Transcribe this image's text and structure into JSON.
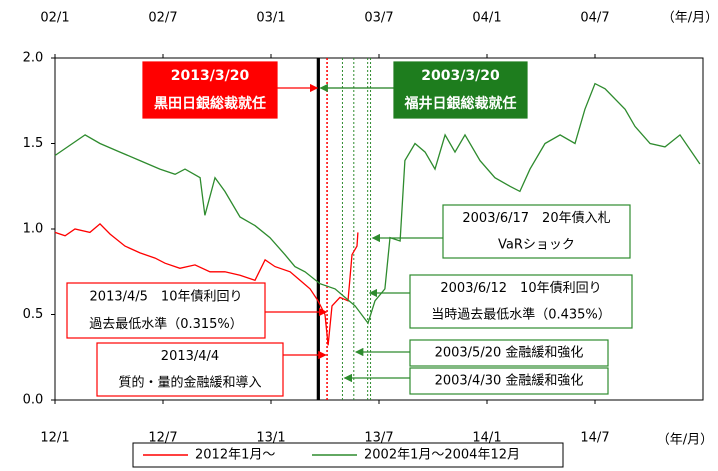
{
  "chart_data": {
    "type": "line",
    "xlim": [
      0,
      36
    ],
    "ylim": [
      0,
      2
    ],
    "xticks": [
      {
        "value": 0,
        "label": "12/1"
      },
      {
        "value": 6,
        "label": "12/7"
      },
      {
        "value": 12,
        "label": "13/1"
      },
      {
        "value": 18,
        "label": "13/7"
      },
      {
        "value": 24,
        "label": "14/1"
      },
      {
        "value": 30,
        "label": "14/7"
      }
    ],
    "x2ticks": [
      {
        "value": 0,
        "label": "02/1"
      },
      {
        "value": 6,
        "label": "02/7"
      },
      {
        "value": 12,
        "label": "03/1"
      },
      {
        "value": 18,
        "label": "03/7"
      },
      {
        "value": 24,
        "label": "04/1"
      },
      {
        "value": 30,
        "label": "04/7"
      }
    ],
    "yticks": [
      {
        "value": 0,
        "label": "0.0"
      },
      {
        "value": 0.5,
        "label": "0.5"
      },
      {
        "value": 1,
        "label": "1.0"
      },
      {
        "value": 1.5,
        "label": "1.5"
      },
      {
        "value": 2,
        "label": "2.0"
      }
    ],
    "xlabel": "（年/月）",
    "x2label": "（年/月）",
    "series": [
      {
        "name": "2012年1月～",
        "color": "#ff0000",
        "x": [
          0,
          0.56,
          1.11,
          1.94,
          2.5,
          3.06,
          3.89,
          4.72,
          5.56,
          6.11,
          6.94,
          7.78,
          8.61,
          9.44,
          10.28,
          11.11,
          11.67,
          12.22,
          13.06,
          13.61,
          14.17,
          14.61,
          15.0,
          15.17,
          15.39,
          15.83,
          16.28,
          16.5,
          16.78,
          16.83
        ],
        "values": [
          0.98,
          0.96,
          1.0,
          0.98,
          1.03,
          0.97,
          0.9,
          0.86,
          0.83,
          0.8,
          0.77,
          0.79,
          0.75,
          0.75,
          0.73,
          0.7,
          0.82,
          0.78,
          0.75,
          0.7,
          0.65,
          0.58,
          0.5,
          0.32,
          0.55,
          0.6,
          0.58,
          0.85,
          0.9,
          0.98
        ]
      },
      {
        "name": "2002年1月～2004年12月",
        "color": "#2e8b2e",
        "x": [
          0,
          1.67,
          2.5,
          3.61,
          4.72,
          5.83,
          6.67,
          7.22,
          8.06,
          8.33,
          8.89,
          9.44,
          10.28,
          11.11,
          11.94,
          12.78,
          13.33,
          13.89,
          14.72,
          15.56,
          16.11,
          16.67,
          17.39,
          17.78,
          18.33,
          18.61,
          19.17,
          19.44,
          20.0,
          20.56,
          21.11,
          21.67,
          22.22,
          22.78,
          23.61,
          24.44,
          25.28,
          25.83,
          26.39,
          27.22,
          28.06,
          28.89,
          29.44,
          30.0,
          30.56,
          31.67,
          32.22,
          33.06,
          33.89,
          34.72,
          35.83
        ],
        "values": [
          1.43,
          1.55,
          1.5,
          1.45,
          1.4,
          1.35,
          1.32,
          1.35,
          1.3,
          1.08,
          1.3,
          1.22,
          1.07,
          1.02,
          0.95,
          0.85,
          0.78,
          0.75,
          0.68,
          0.65,
          0.6,
          0.55,
          0.45,
          0.58,
          0.65,
          0.95,
          0.93,
          1.4,
          1.5,
          1.45,
          1.35,
          1.55,
          1.45,
          1.55,
          1.4,
          1.3,
          1.25,
          1.22,
          1.35,
          1.5,
          1.55,
          1.5,
          1.7,
          1.85,
          1.82,
          1.7,
          1.6,
          1.5,
          1.48,
          1.55,
          1.38
        ]
      }
    ],
    "annotations": [
      {
        "lines": [
          "2013/3/20",
          "黒田日銀総裁就任"
        ],
        "x": 14.63,
        "color": "#ff0000",
        "style": "filled"
      },
      {
        "lines": [
          "2003/3/20",
          "福井日銀総裁就任"
        ],
        "x": 14.63,
        "color": "#1e7d1e",
        "style": "filled"
      },
      {
        "lines": [
          "2003/6/17　20年債入札",
          "VaRショック"
        ],
        "x": 17.53,
        "color": "#2e8b2e",
        "style": "outline"
      },
      {
        "lines": [
          "2003/6/12　10年債利回り",
          "当時過去最低水準（0.435%）"
        ],
        "x": 17.37,
        "color": "#2e8b2e",
        "style": "outline"
      },
      {
        "lines": [
          "2013/4/5　10年債利回り",
          "過去最低水準（0.315%）"
        ],
        "x": 15.13,
        "color": "#ff0000",
        "style": "outline"
      },
      {
        "lines": [
          "2013/4/4",
          "質的・量的金融緩和導入"
        ],
        "x": 15.1,
        "color": "#ff0000",
        "style": "outline"
      },
      {
        "lines": [
          "2003/5/20 金融緩和強化"
        ],
        "x": 16.6,
        "color": "#2e8b2e",
        "style": "outline"
      },
      {
        "lines": [
          "2003/4/30 金融緩和強化"
        ],
        "x": 15.97,
        "color": "#2e8b2e",
        "style": "outline"
      }
    ]
  }
}
